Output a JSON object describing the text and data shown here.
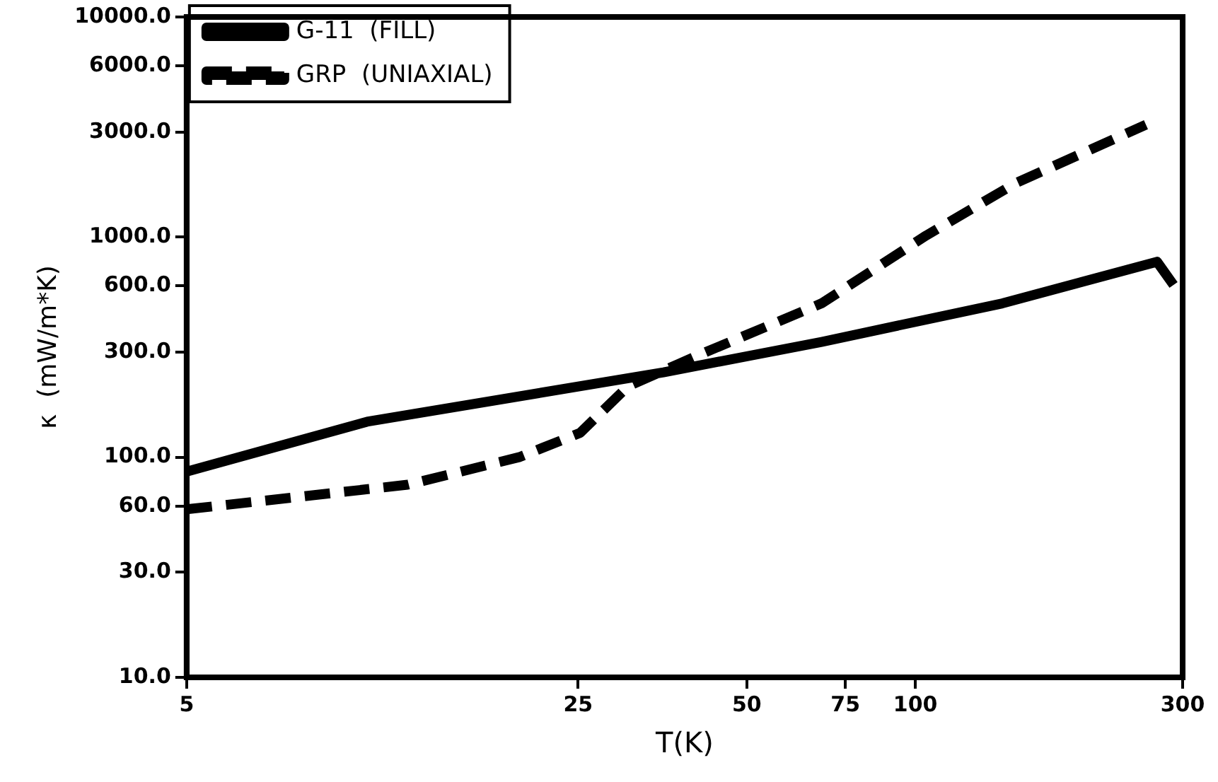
{
  "chart_data": {
    "type": "line",
    "xlabel": "T(K)",
    "ylabel": "κ  (mW/m*K)",
    "log": "xy",
    "grid": false,
    "legend": "top left",
    "marker": "none",
    "xlim": [
      5,
      300
    ],
    "xticks": [
      5,
      25,
      50,
      75,
      100,
      300
    ],
    "ylim": [
      10,
      10000
    ],
    "yticks": [
      {
        "value": 10,
        "label": "10.0"
      },
      {
        "value": 30,
        "label": "30.0"
      },
      {
        "value": 60,
        "label": "60.0"
      },
      {
        "value": 100,
        "label": "100.0"
      },
      {
        "value": 300,
        "label": "300.0"
      },
      {
        "value": 600,
        "label": "600.0"
      },
      {
        "value": 1000,
        "label": "1000.0"
      },
      {
        "value": 3000,
        "label": "3000.0"
      },
      {
        "value": 6000,
        "label": "6000.0"
      },
      {
        "value": 10000,
        "label": "10000.0"
      }
    ],
    "series": [
      {
        "name": "G-11  (FILL)",
        "color": "#000000",
        "line_style": "solid",
        "x": [
          5,
          10.5,
          35.5,
          68,
          143,
          270,
          289
        ],
        "values": [
          86,
          145,
          243,
          334,
          500,
          773,
          606
        ]
      },
      {
        "name": "GRP  (UNIAXIAL)",
        "color": "#000000",
        "line_style": "dashed",
        "x": [
          5,
          12.4,
          19.6,
          25.2,
          30.7,
          40.9,
          68,
          104.5,
          151,
          258
        ],
        "values": [
          58,
          75,
          100,
          129,
          210,
          290,
          500,
          1016,
          1758,
          3240
        ]
      }
    ]
  }
}
